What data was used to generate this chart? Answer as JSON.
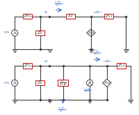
{
  "bg_color": "#ffffff",
  "line_color": "#404040",
  "box_border_color": "#cc2222",
  "text_color_blue": "#3366cc",
  "text_color_dark": "#333333",
  "figsize": [
    2.0,
    1.66
  ],
  "dpi": 100
}
